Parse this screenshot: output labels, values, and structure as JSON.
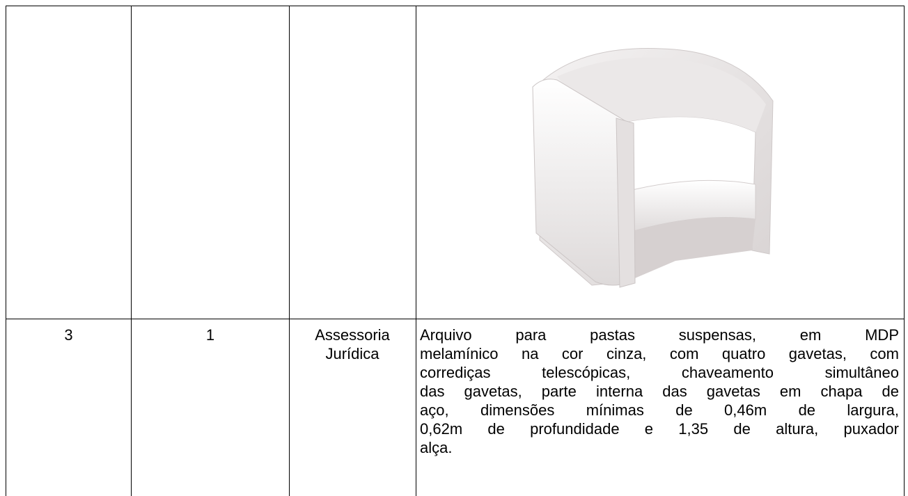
{
  "table": {
    "row": {
      "item": "3",
      "quantity": "1",
      "department": "Assessoria Jurídica",
      "description": [
        "Arquivo para pastas suspensas, em MDP",
        "melamínico na cor cinza, com quatro gavetas, com",
        "corrediças telescópicas, chaveamento simultâneo",
        "das gavetas, parte interna das gavetas em chapa de",
        "aço, dimensões mínimas de 0,46m de largura,",
        "0,62m de profundidade e 1,35 de altura, puxador",
        "alça."
      ]
    }
  }
}
